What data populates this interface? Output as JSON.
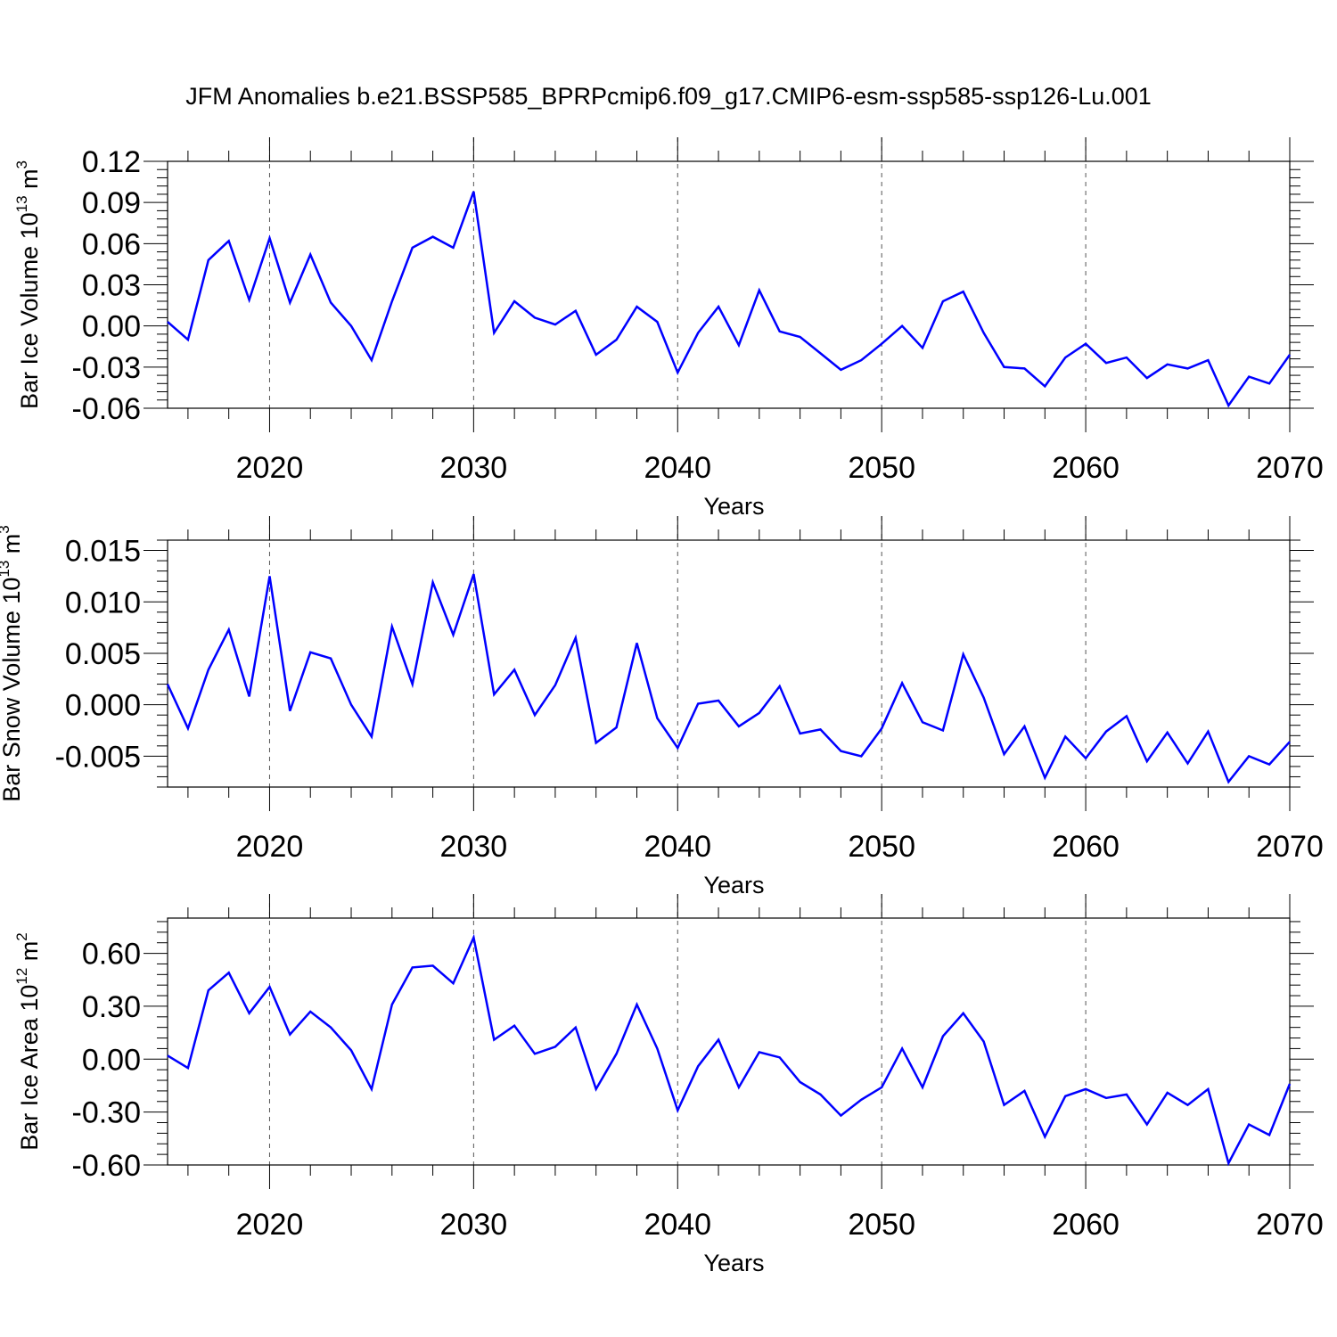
{
  "title": "JFM Anomalies b.e21.BSSP585_BPRPcmip6.f09_g17.CMIP6-esm-ssp585-ssp126-Lu.001",
  "chart_data": [
    {
      "type": "line",
      "xlabel": "Years",
      "ylabel": {
        "text": "Bar Ice Volume 10",
        "sup": "13",
        "unit": " m",
        "unit_sup": "3"
      },
      "xlim": [
        2015,
        2070
      ],
      "ylim": [
        -0.06,
        0.12
      ],
      "xticks": [
        2020,
        2030,
        2040,
        2050,
        2060,
        2070
      ],
      "yticks": [
        -0.06,
        -0.03,
        0.0,
        0.03,
        0.06,
        0.09,
        0.12
      ],
      "ytick_labels": [
        "-0.06",
        "-0.03",
        "0.00",
        "0.03",
        "0.06",
        "0.09",
        "0.12"
      ],
      "grid": "x-dashed",
      "color": "#0000ff",
      "x": [
        2015,
        2016,
        2017,
        2018,
        2019,
        2020,
        2021,
        2022,
        2023,
        2024,
        2025,
        2026,
        2027,
        2028,
        2029,
        2030,
        2031,
        2032,
        2033,
        2034,
        2035,
        2036,
        2037,
        2038,
        2039,
        2040,
        2041,
        2042,
        2043,
        2044,
        2045,
        2046,
        2047,
        2048,
        2049,
        2050,
        2051,
        2052,
        2053,
        2054,
        2055,
        2056,
        2057,
        2058,
        2059,
        2060,
        2061,
        2062,
        2063,
        2064,
        2065,
        2066,
        2067,
        2068,
        2069,
        2070
      ],
      "values": [
        0.003,
        -0.01,
        0.048,
        0.062,
        0.019,
        0.064,
        0.017,
        0.052,
        0.017,
        0.0,
        -0.025,
        0.018,
        0.057,
        0.065,
        0.057,
        0.098,
        -0.005,
        0.018,
        0.006,
        0.001,
        0.011,
        -0.021,
        -0.01,
        0.014,
        0.003,
        -0.034,
        -0.005,
        0.014,
        -0.014,
        0.026,
        -0.004,
        -0.008,
        -0.02,
        -0.032,
        -0.025,
        -0.013,
        0.0,
        -0.016,
        0.018,
        0.025,
        -0.005,
        -0.03,
        -0.031,
        -0.044,
        -0.023,
        -0.013,
        -0.027,
        -0.023,
        -0.038,
        -0.028,
        -0.031,
        -0.025,
        -0.058,
        -0.037,
        -0.042,
        -0.021
      ]
    },
    {
      "type": "line",
      "xlabel": "Years",
      "ylabel": {
        "text": "Bar Snow Volume 10",
        "sup": "13",
        "unit": " m",
        "unit_sup": "3"
      },
      "xlim": [
        2015,
        2070
      ],
      "ylim": [
        -0.008,
        0.016
      ],
      "xticks": [
        2020,
        2030,
        2040,
        2050,
        2060,
        2070
      ],
      "yticks": [
        -0.005,
        0.0,
        0.005,
        0.01,
        0.015
      ],
      "ytick_labels": [
        "-0.005",
        "0.000",
        "0.005",
        "0.010",
        "0.015"
      ],
      "grid": "x-dashed",
      "color": "#0000ff",
      "x": [
        2015,
        2016,
        2017,
        2018,
        2019,
        2020,
        2021,
        2022,
        2023,
        2024,
        2025,
        2026,
        2027,
        2028,
        2029,
        2030,
        2031,
        2032,
        2033,
        2034,
        2035,
        2036,
        2037,
        2038,
        2039,
        2040,
        2041,
        2042,
        2043,
        2044,
        2045,
        2046,
        2047,
        2048,
        2049,
        2050,
        2051,
        2052,
        2053,
        2054,
        2055,
        2056,
        2057,
        2058,
        2059,
        2060,
        2061,
        2062,
        2063,
        2064,
        2065,
        2066,
        2067,
        2068,
        2069,
        2070
      ],
      "values": [
        0.002,
        -0.0023,
        0.0034,
        0.0073,
        0.0008,
        0.0125,
        -0.0006,
        0.0051,
        0.0045,
        0.0,
        -0.0031,
        0.0076,
        0.002,
        0.0119,
        0.0068,
        0.0127,
        0.001,
        0.0034,
        -0.001,
        0.0019,
        0.0065,
        -0.0037,
        -0.0022,
        0.006,
        -0.0013,
        -0.0042,
        0.0001,
        0.0004,
        -0.0021,
        -0.0008,
        0.0018,
        -0.0028,
        -0.0024,
        -0.0045,
        -0.005,
        -0.0023,
        0.0021,
        -0.0017,
        -0.0025,
        0.0049,
        0.0007,
        -0.0048,
        -0.0021,
        -0.0071,
        -0.0031,
        -0.0052,
        -0.0026,
        -0.0011,
        -0.0055,
        -0.0027,
        -0.0057,
        -0.0026,
        -0.0075,
        -0.005,
        -0.0058,
        -0.0036
      ]
    },
    {
      "type": "line",
      "xlabel": "Years",
      "ylabel": {
        "text": "Bar Ice Area 10",
        "sup": "12",
        "unit": " m",
        "unit_sup": "2"
      },
      "xlim": [
        2015,
        2070
      ],
      "ylim": [
        -0.6,
        0.8
      ],
      "xticks": [
        2020,
        2030,
        2040,
        2050,
        2060,
        2070
      ],
      "yticks": [
        -0.6,
        -0.3,
        0.0,
        0.3,
        0.6
      ],
      "ytick_labels": [
        "-0.60",
        "-0.30",
        "0.00",
        "0.30",
        "0.60"
      ],
      "grid": "x-dashed",
      "color": "#0000ff",
      "x": [
        2015,
        2016,
        2017,
        2018,
        2019,
        2020,
        2021,
        2022,
        2023,
        2024,
        2025,
        2026,
        2027,
        2028,
        2029,
        2030,
        2031,
        2032,
        2033,
        2034,
        2035,
        2036,
        2037,
        2038,
        2039,
        2040,
        2041,
        2042,
        2043,
        2044,
        2045,
        2046,
        2047,
        2048,
        2049,
        2050,
        2051,
        2052,
        2053,
        2054,
        2055,
        2056,
        2057,
        2058,
        2059,
        2060,
        2061,
        2062,
        2063,
        2064,
        2065,
        2066,
        2067,
        2068,
        2069,
        2070
      ],
      "values": [
        0.02,
        -0.05,
        0.39,
        0.49,
        0.26,
        0.41,
        0.14,
        0.27,
        0.18,
        0.05,
        -0.17,
        0.31,
        0.52,
        0.53,
        0.43,
        0.69,
        0.11,
        0.19,
        0.03,
        0.07,
        0.18,
        -0.17,
        0.03,
        0.31,
        0.06,
        -0.29,
        -0.04,
        0.11,
        -0.16,
        0.04,
        0.01,
        -0.13,
        -0.2,
        -0.32,
        -0.23,
        -0.16,
        0.06,
        -0.16,
        0.13,
        0.26,
        0.1,
        -0.26,
        -0.18,
        -0.44,
        -0.21,
        -0.17,
        -0.22,
        -0.2,
        -0.37,
        -0.19,
        -0.26,
        -0.17,
        -0.59,
        -0.37,
        -0.43,
        -0.14
      ]
    }
  ]
}
